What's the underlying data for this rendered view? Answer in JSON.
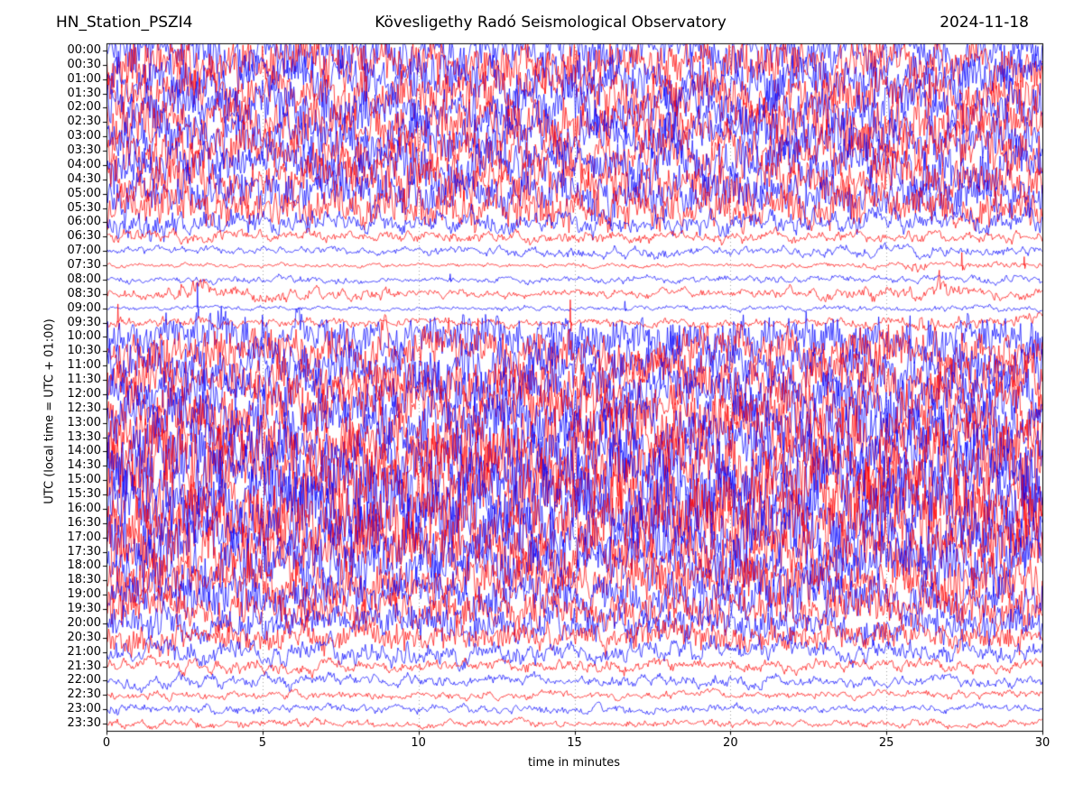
{
  "header": {
    "station": "HN_Station_PSZI4",
    "observatory": "Kövesligethy Radó Seismological Observatory",
    "date": "2024-11-18"
  },
  "chart_data": {
    "type": "line",
    "subtype": "helicorder-dayplot",
    "xlabel": "time in minutes",
    "ylabel": "UTC (local time = UTC + 01:00)",
    "xlim": [
      0,
      30
    ],
    "x_ticks": [
      0,
      5,
      10,
      15,
      20,
      25,
      30
    ],
    "x_gridlines": [
      5,
      10,
      15,
      20,
      25
    ],
    "grid": true,
    "grid_style": "dotted",
    "grid_color": "#555555",
    "frame_color": "#000000",
    "trace_colors": {
      "hour_line": "#0000ff",
      "half_hour_line": "#ff0000"
    },
    "minutes_per_line": 30,
    "rows": [
      {
        "t": "00:00",
        "amp": [
          1.9,
          1.8,
          1.7,
          1.9,
          1.8,
          1.7,
          1.9
        ]
      },
      {
        "t": "00:30",
        "amp": [
          1.8,
          1.9,
          1.8,
          1.7,
          1.9,
          1.8,
          1.7
        ]
      },
      {
        "t": "01:00",
        "amp": [
          1.7,
          1.8,
          1.9,
          1.8,
          1.7,
          1.9,
          1.8
        ]
      },
      {
        "t": "01:30",
        "amp": [
          1.9,
          1.7,
          1.8,
          1.9,
          1.8,
          1.7,
          1.8
        ]
      },
      {
        "t": "02:00",
        "amp": [
          1.8,
          1.9,
          1.7,
          1.8,
          1.9,
          1.8,
          1.9
        ]
      },
      {
        "t": "02:30",
        "amp": [
          1.8,
          1.7,
          1.9,
          1.8,
          1.7,
          1.9,
          1.8
        ]
      },
      {
        "t": "03:00",
        "amp": [
          1.7,
          1.9,
          1.8,
          1.7,
          1.9,
          1.8,
          1.7
        ]
      },
      {
        "t": "03:30",
        "amp": [
          1.8,
          1.8,
          1.7,
          1.9,
          1.8,
          1.7,
          1.9
        ]
      },
      {
        "t": "04:00",
        "amp": [
          1.7,
          1.8,
          1.8,
          1.7,
          1.8,
          1.9,
          1.7
        ]
      },
      {
        "t": "04:30",
        "amp": [
          1.7,
          1.6,
          1.7,
          1.8,
          1.6,
          1.7,
          1.6
        ]
      },
      {
        "t": "05:00",
        "amp": [
          1.6,
          1.7,
          1.5,
          1.6,
          1.7,
          1.5,
          1.6
        ]
      },
      {
        "t": "05:30",
        "amp": [
          1.5,
          1.4,
          1.5,
          1.6,
          1.4,
          1.5,
          1.4
        ]
      },
      {
        "t": "06:00",
        "amp": [
          1.1,
          1.0,
          0.9,
          0.8,
          0.9,
          0.8,
          0.9
        ]
      },
      {
        "t": "06:30",
        "amp": [
          0.55,
          0.5,
          0.45,
          0.4,
          0.45,
          0.4,
          0.45
        ]
      },
      {
        "t": "07:00",
        "amp": [
          0.3,
          0.28,
          0.25,
          0.4,
          0.3,
          0.45,
          0.3
        ]
      },
      {
        "t": "07:30",
        "amp": [
          0.18,
          0.16,
          0.15,
          0.16,
          0.15,
          0.22,
          0.28
        ]
      },
      {
        "t": "08:00",
        "amp": [
          0.25,
          0.28,
          0.2,
          0.25,
          0.3,
          0.25,
          0.3
        ]
      },
      {
        "t": "08:30",
        "amp": [
          0.35,
          0.55,
          0.35,
          0.3,
          0.35,
          0.5,
          0.4
        ]
      },
      {
        "t": "09:00",
        "amp": [
          0.18,
          0.16,
          0.15,
          0.2,
          0.18,
          0.2,
          0.24
        ]
      },
      {
        "t": "09:30",
        "amp": [
          0.4,
          0.35,
          0.3,
          0.3,
          0.32,
          0.38,
          0.5
        ]
      },
      {
        "t": "10:00",
        "amp": [
          1.5,
          1.6,
          1.5,
          1.6,
          1.7,
          1.6,
          1.7
        ]
      },
      {
        "t": "10:30",
        "amp": [
          1.7,
          1.6,
          1.7,
          1.8,
          1.7,
          1.8,
          1.7
        ]
      },
      {
        "t": "11:00",
        "amp": [
          1.8,
          1.7,
          1.8,
          1.9,
          1.8,
          1.9,
          1.8
        ]
      },
      {
        "t": "11:30",
        "amp": [
          1.9,
          1.8,
          1.9,
          2.0,
          1.9,
          2.0,
          1.9
        ]
      },
      {
        "t": "12:00",
        "amp": [
          2.0,
          1.9,
          2.0,
          2.1,
          2.0,
          2.1,
          2.0
        ]
      },
      {
        "t": "12:30",
        "amp": [
          2.0,
          2.1,
          2.0,
          2.1,
          2.2,
          2.1,
          2.0
        ]
      },
      {
        "t": "13:00",
        "amp": [
          2.2,
          2.1,
          2.2,
          2.3,
          2.2,
          2.3,
          2.2
        ]
      },
      {
        "t": "13:30",
        "amp": [
          2.3,
          2.4,
          2.3,
          2.4,
          2.3,
          2.4,
          2.3
        ]
      },
      {
        "t": "14:00",
        "amp": [
          2.5,
          2.4,
          2.5,
          2.6,
          2.5,
          2.6,
          2.5
        ]
      },
      {
        "t": "14:30",
        "amp": [
          2.6,
          2.5,
          2.6,
          2.7,
          2.6,
          2.7,
          2.6
        ]
      },
      {
        "t": "15:00",
        "amp": [
          2.7,
          2.6,
          2.7,
          2.8,
          2.7,
          2.8,
          2.7
        ]
      },
      {
        "t": "15:30",
        "amp": [
          2.7,
          2.8,
          2.7,
          2.6,
          2.7,
          2.8,
          2.7
        ]
      },
      {
        "t": "16:00",
        "amp": [
          2.6,
          2.5,
          2.6,
          2.7,
          2.6,
          2.5,
          2.6
        ]
      },
      {
        "t": "16:30",
        "amp": [
          2.5,
          2.6,
          2.5,
          2.4,
          2.5,
          2.6,
          2.5
        ]
      },
      {
        "t": "17:00",
        "amp": [
          2.4,
          2.3,
          2.4,
          2.5,
          2.4,
          2.3,
          2.4
        ]
      },
      {
        "t": "17:30",
        "amp": [
          2.2,
          2.3,
          2.2,
          2.1,
          2.2,
          2.3,
          2.2
        ]
      },
      {
        "t": "18:00",
        "amp": [
          2.0,
          2.1,
          2.0,
          1.9,
          2.0,
          2.1,
          2.0
        ]
      },
      {
        "t": "18:30",
        "amp": [
          1.8,
          1.9,
          1.8,
          1.7,
          1.8,
          1.9,
          1.8
        ]
      },
      {
        "t": "19:00",
        "amp": [
          1.6,
          1.7,
          1.6,
          1.5,
          1.6,
          1.7,
          1.6
        ]
      },
      {
        "t": "19:30",
        "amp": [
          1.5,
          1.4,
          1.5,
          1.4,
          1.5,
          1.4,
          1.5
        ]
      },
      {
        "t": "20:00",
        "amp": [
          1.3,
          1.2,
          1.3,
          1.2,
          1.3,
          1.2,
          1.3
        ]
      },
      {
        "t": "20:30",
        "amp": [
          1.1,
          1.0,
          1.1,
          1.0,
          1.1,
          1.0,
          1.1
        ]
      },
      {
        "t": "21:00",
        "amp": [
          0.95,
          0.9,
          0.85,
          0.8,
          0.8,
          0.75,
          0.75
        ]
      },
      {
        "t": "21:30",
        "amp": [
          0.55,
          0.5,
          0.45,
          0.5,
          0.45,
          0.5,
          0.45
        ]
      },
      {
        "t": "22:00",
        "amp": [
          0.55,
          0.5,
          0.45,
          0.4,
          0.45,
          0.4,
          0.38
        ]
      },
      {
        "t": "22:30",
        "amp": [
          0.32,
          0.3,
          0.28,
          0.3,
          0.28,
          0.3,
          0.3
        ]
      },
      {
        "t": "23:00",
        "amp": [
          0.38,
          0.32,
          0.3,
          0.35,
          0.3,
          0.3,
          0.3
        ]
      },
      {
        "t": "23:30",
        "amp": [
          0.3,
          0.32,
          0.26,
          0.3,
          0.26,
          0.28,
          0.26
        ]
      }
    ],
    "spikes": [
      {
        "row": 6,
        "m": 17.9,
        "h": 1.3,
        "w": 0.1
      },
      {
        "row": 14,
        "m": 17.5,
        "h": 0.5,
        "w": 0.3
      },
      {
        "row": 15,
        "m": 25.9,
        "h": 0.35,
        "w": 0.25
      },
      {
        "row": 15,
        "m": 27.4,
        "h": 0.9,
        "w": 0.06
      },
      {
        "row": 15,
        "m": 29.4,
        "h": 0.6,
        "w": 0.08
      },
      {
        "row": 16,
        "m": 11.0,
        "h": 0.4,
        "w": 0.08
      },
      {
        "row": 17,
        "m": 2.9,
        "h": 0.5,
        "w": 0.5
      },
      {
        "row": 17,
        "m": 24.4,
        "h": 0.45,
        "w": 0.2
      },
      {
        "row": 17,
        "m": 26.8,
        "h": 0.55,
        "w": 0.3
      },
      {
        "row": 18,
        "m": 2.9,
        "h": 1.8,
        "w": 0.05
      },
      {
        "row": 18,
        "m": 16.6,
        "h": 0.5,
        "w": 0.07
      },
      {
        "row": 19,
        "m": 0.35,
        "h": 1.3,
        "w": 0.05
      },
      {
        "row": 19,
        "m": 14.85,
        "h": 1.6,
        "w": 0.05
      },
      {
        "row": 19,
        "m": 26.2,
        "h": 0.5,
        "w": 0.2
      }
    ]
  }
}
